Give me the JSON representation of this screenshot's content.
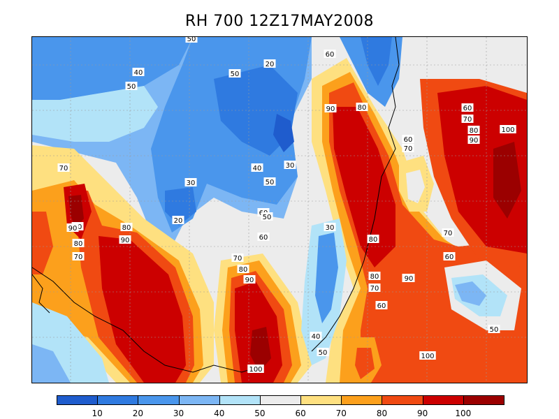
{
  "title": "RH 700 12Z17MAY2008",
  "colorbar": {
    "ticks": [
      "10",
      "20",
      "30",
      "40",
      "50",
      "60",
      "70",
      "80",
      "90",
      "100"
    ],
    "colors": [
      "#1f5ccd",
      "#2f7ae0",
      "#4a96ec",
      "#7cb6f4",
      "#b2e3f8",
      "#ececec",
      "#fee080",
      "#fca01c",
      "#f04a12",
      "#cc0000",
      "#9b0000"
    ]
  },
  "contour_labels": [
    {
      "text": "50",
      "cls": "c50"
    },
    {
      "text": "40",
      "cls": "c40"
    },
    {
      "text": "50",
      "cls": "c50"
    },
    {
      "text": "20",
      "cls": "c20"
    },
    {
      "text": "60",
      "cls": "c60"
    },
    {
      "text": "50",
      "cls": "c50"
    },
    {
      "text": "90",
      "cls": "c90"
    },
    {
      "text": "80",
      "cls": "c80"
    },
    {
      "text": "60",
      "cls": "c60"
    },
    {
      "text": "70",
      "cls": "c70"
    },
    {
      "text": "80",
      "cls": "c80"
    },
    {
      "text": "100",
      "cls": "c100"
    },
    {
      "text": "90",
      "cls": "c90"
    },
    {
      "text": "60",
      "cls": "c60"
    },
    {
      "text": "70",
      "cls": "c70"
    },
    {
      "text": "30",
      "cls": "c30"
    },
    {
      "text": "40",
      "cls": "c40"
    },
    {
      "text": "30",
      "cls": "c30"
    },
    {
      "text": "50",
      "cls": "c50"
    },
    {
      "text": "70",
      "cls": "c70"
    },
    {
      "text": "20",
      "cls": "c20"
    },
    {
      "text": "60",
      "cls": "c60"
    },
    {
      "text": "50",
      "cls": "c50"
    },
    {
      "text": "60",
      "cls": "c60"
    },
    {
      "text": "70",
      "cls": "c70"
    },
    {
      "text": "90",
      "cls": "c90"
    },
    {
      "text": "80",
      "cls": "c80"
    },
    {
      "text": "90",
      "cls": "c90"
    },
    {
      "text": "80",
      "cls": "c80"
    },
    {
      "text": "70",
      "cls": "c70"
    },
    {
      "text": "70",
      "cls": "c70"
    },
    {
      "text": "80",
      "cls": "c80"
    },
    {
      "text": "90",
      "cls": "c90"
    },
    {
      "text": "80",
      "cls": "c80"
    },
    {
      "text": "70",
      "cls": "c70"
    },
    {
      "text": "60",
      "cls": "c60"
    },
    {
      "text": "30",
      "cls": "c30"
    },
    {
      "text": "90",
      "cls": "c90"
    },
    {
      "text": "80",
      "cls": "c80"
    },
    {
      "text": "70",
      "cls": "c70"
    },
    {
      "text": "60",
      "cls": "c60"
    },
    {
      "text": "90",
      "cls": "c90"
    },
    {
      "text": "40",
      "cls": "c40"
    },
    {
      "text": "50",
      "cls": "c50"
    },
    {
      "text": "100",
      "cls": "c100"
    },
    {
      "text": "100",
      "cls": "c100"
    },
    {
      "text": "50",
      "cls": "c50"
    }
  ]
}
